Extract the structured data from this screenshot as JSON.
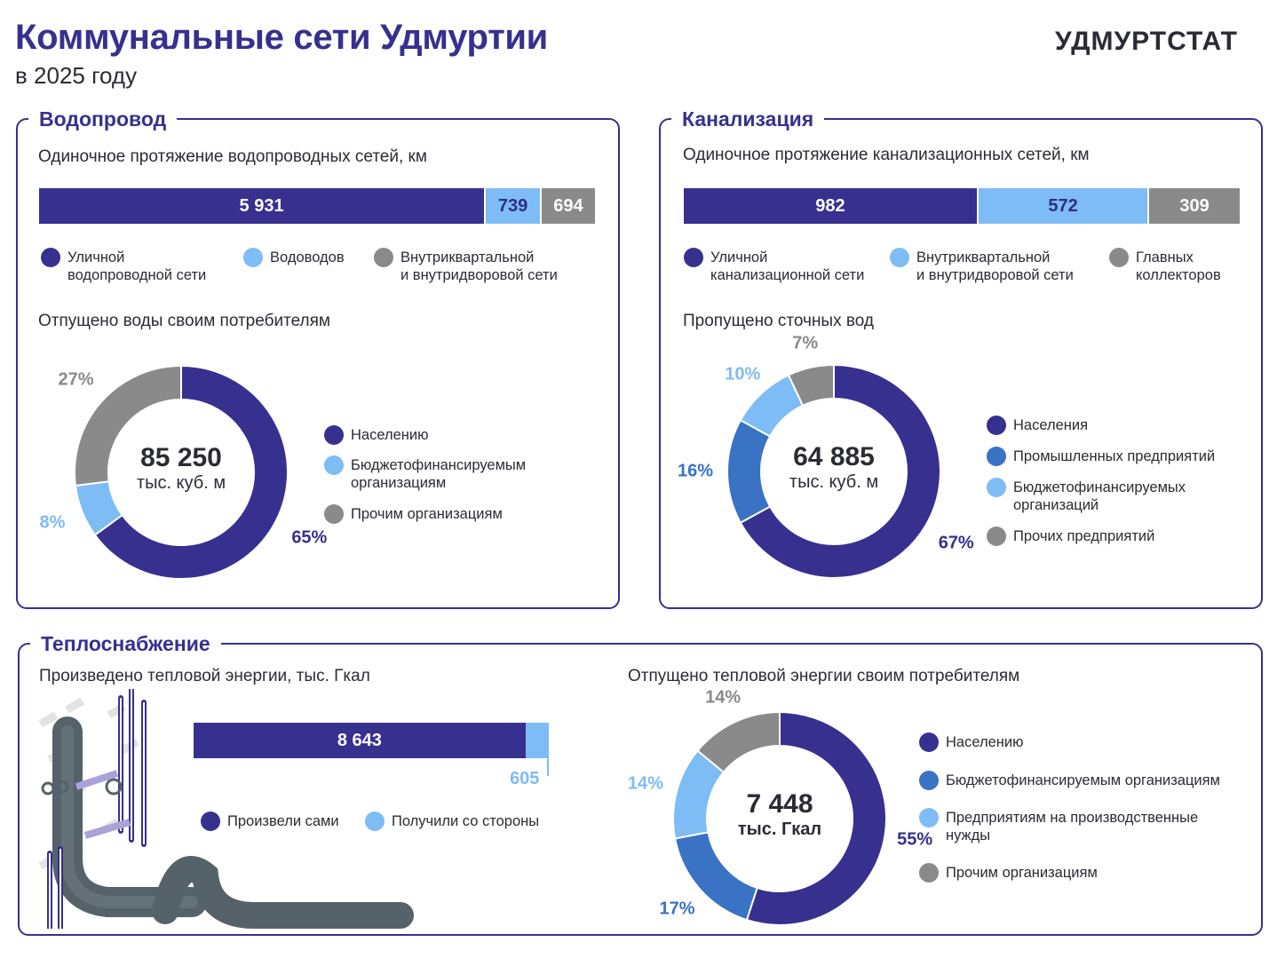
{
  "header": {
    "title": "Коммунальные сети Удмуртии",
    "subtitle": "в 2025 году",
    "logo": "УДМУРТСТАТ"
  },
  "water": {
    "panel_title": "Водопровод",
    "length_label": "Одиночное протяжение водопроводных сетей, км",
    "length_bar": [
      {
        "label": "5 931",
        "value": 5931,
        "color": "#37308f",
        "name": "Уличной\nводопроводной сети"
      },
      {
        "label": "739",
        "value": 739,
        "color": "#7ebcf5",
        "name": "Водоводов"
      },
      {
        "label": "694",
        "value": 694,
        "color": "#8a8a8a",
        "name": "Внутриквартальной\nи внутридворовой сети"
      }
    ],
    "donut_label": "Отпущено воды своим потребителям",
    "donut_total": "85 250",
    "donut_unit": "тыс. куб. м"
  },
  "sewer": {
    "panel_title": "Канализация",
    "length_label": "Одиночное протяжение канализационных сетей, км",
    "length_bar": [
      {
        "label": "982",
        "value": 982,
        "color": "#37308f",
        "name": "Уличной\nканализационной сети"
      },
      {
        "label": "572",
        "value": 572,
        "color": "#7ebcf5",
        "name": "Внутриквартальной\nи внутридворовой сети"
      },
      {
        "label": "309",
        "value": 309,
        "color": "#8a8a8a",
        "name": "Главных\nколлекторов"
      }
    ],
    "donut_label": "Пропущено сточных вод",
    "donut_total": "64 885",
    "donut_unit": "тыс. куб. м"
  },
  "heat": {
    "panel_title": "Теплоснабжение",
    "produced_label": "Произведено тепловой энергии, тыс. Гкал",
    "produced_bar": [
      {
        "label": "8 643",
        "value": 8643,
        "color": "#37308f",
        "name": "Произвели сами"
      },
      {
        "label": "605",
        "value": 605,
        "color": "#7ebcf5",
        "name": "Получили со стороны"
      }
    ],
    "donut_label": "Отпущено тепловой энергии своим потребителям",
    "donut_total": "7 448",
    "donut_unit": "тыс. Гкал",
    "illustration_icon": "pipes-illustration-icon"
  },
  "chart_data": [
    {
      "type": "bar",
      "title": "Одиночное протяжение водопроводных сетей, км",
      "categories": [
        "Уличной водопроводной сети",
        "Водоводов",
        "Внутриквартальной и внутридворовой сети"
      ],
      "values": [
        5931,
        739,
        694
      ]
    },
    {
      "type": "pie",
      "title": "Отпущено воды своим потребителям",
      "total": "85 250",
      "unit": "тыс. куб. м",
      "slices": [
        {
          "label": "Населению",
          "value": 65,
          "text": "65%",
          "color": "#37308f",
          "text_color": "#37308f"
        },
        {
          "label": "Бюджетофинансируемым\nорганизациям",
          "value": 8,
          "text": "8%",
          "color": "#7ebcf5",
          "text_color": "#7ebcf5"
        },
        {
          "label": "Прочим организациям",
          "value": 27,
          "text": "27%",
          "color": "#8a8a8a",
          "text_color": "#8a8a8a"
        }
      ]
    },
    {
      "type": "bar",
      "title": "Одиночное протяжение канализационных сетей, км",
      "categories": [
        "Уличной канализационной сети",
        "Внутриквартальной и внутридворовой сети",
        "Главных коллекторов"
      ],
      "values": [
        982,
        572,
        309
      ]
    },
    {
      "type": "pie",
      "title": "Пропущено сточных вод",
      "total": "64 885",
      "unit": "тыс. куб. м",
      "slices": [
        {
          "label": "Населения",
          "value": 67,
          "text": "67%",
          "color": "#37308f",
          "text_color": "#37308f"
        },
        {
          "label": "Промышленных предприятий",
          "value": 16,
          "text": "16%",
          "color": "#3a72c4",
          "text_color": "#3a72c4"
        },
        {
          "label": "Бюджетофинансируемых\nорганизаций",
          "value": 10,
          "text": "10%",
          "color": "#7ebcf5",
          "text_color": "#7ebcf5"
        },
        {
          "label": "Прочих предприятий",
          "value": 7,
          "text": "7%",
          "color": "#8a8a8a",
          "text_color": "#8a8a8a"
        }
      ]
    },
    {
      "type": "bar",
      "title": "Произведено тепловой энергии, тыс. Гкал",
      "categories": [
        "Произвели сами",
        "Получили со стороны"
      ],
      "values": [
        8643,
        605
      ]
    },
    {
      "type": "pie",
      "title": "Отпущено тепловой энергии своим потребителям",
      "total": "7 448",
      "unit": "тыс. Гкал",
      "slices": [
        {
          "label": "Населению",
          "value": 55,
          "text": "55%",
          "color": "#37308f",
          "text_color": "#37308f"
        },
        {
          "label": "Бюджетофинансируемым организациям",
          "value": 17,
          "text": "17%",
          "color": "#3a72c4",
          "text_color": "#3a72c4"
        },
        {
          "label": "Предприятиям на производственные\nнужды",
          "value": 14,
          "text": "14%",
          "color": "#7ebcf5",
          "text_color": "#7ebcf5"
        },
        {
          "label": "Прочим организациям",
          "value": 14,
          "text": "14%",
          "color": "#8a8a8a",
          "text_color": "#8a8a8a"
        }
      ]
    }
  ]
}
